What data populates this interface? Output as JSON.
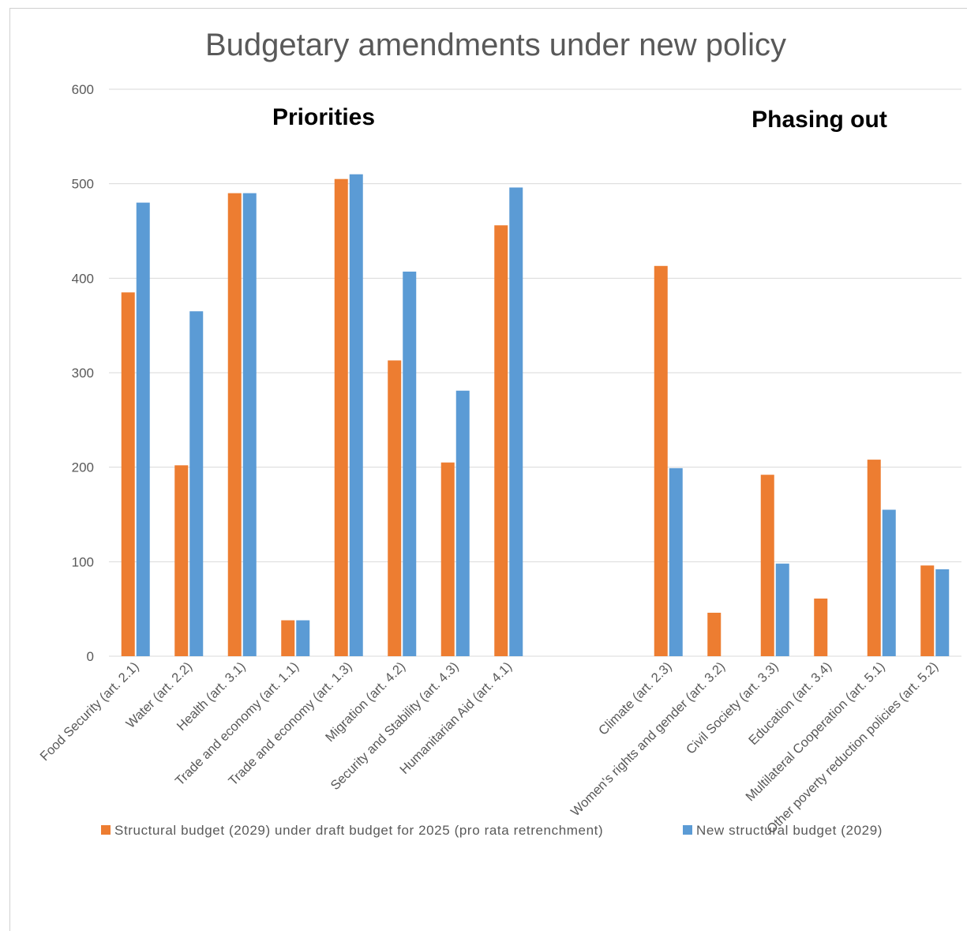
{
  "chart_data": {
    "type": "bar",
    "title": "Budgetary amendments under new policy",
    "ylim": [
      0,
      600
    ],
    "yticks": [
      0,
      100,
      200,
      300,
      400,
      500,
      600
    ],
    "grid": true,
    "legend_position": "bottom",
    "annotations": [
      "Priorities",
      "Phasing out"
    ],
    "categories": [
      "Food Security (art. 2.1)",
      "Water (art. 2.2)",
      "Health (art. 3.1)",
      "Trade and economy (art. 1.1)",
      "Trade and economy (art. 1.3)",
      "Migration (art. 4.2)",
      "Security and Stability (art. 4.3)",
      "Humanitarian Aid (art. 4.1)",
      "",
      "",
      "Climate (art. 2.3)",
      "Women's rights and gender (art. 3.2)",
      "Civil Society (art. 3.3)",
      "Education (art. 3.4)",
      "Multilateral Cooperation (art. 5.1)",
      "Other poverty reduction policies (art. 5.2)"
    ],
    "series": [
      {
        "name": "Structural budget (2029) under draft budget for 2025 (pro rata retrenchment)",
        "color": "#ED7D31",
        "values": [
          385,
          202,
          490,
          38,
          505,
          313,
          205,
          456,
          null,
          null,
          413,
          46,
          192,
          61,
          208,
          96
        ]
      },
      {
        "name": "New structural budget (2029)",
        "color": "#5B9BD5",
        "values": [
          480,
          365,
          490,
          38,
          510,
          407,
          281,
          496,
          null,
          null,
          199,
          0,
          98,
          0,
          155,
          92
        ]
      }
    ]
  }
}
